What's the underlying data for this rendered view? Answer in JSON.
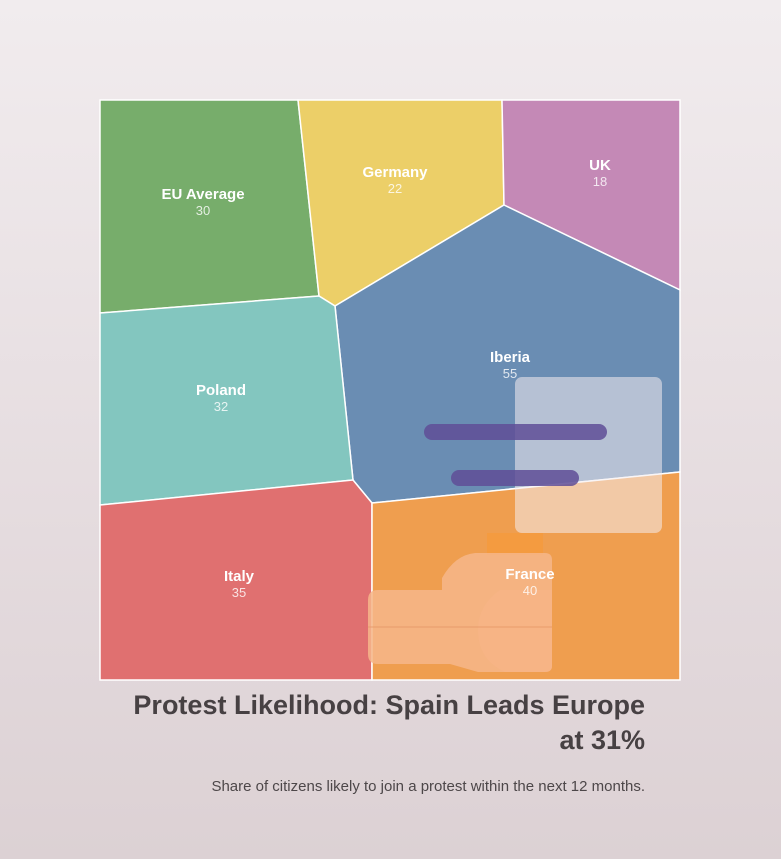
{
  "chart_data": {
    "type": "voronoi-treemap",
    "title": "Protest Likelihood: Spain Leads Europe at 31%",
    "subtitle": "Share of citizens likely to join a protest within the next 12 months.",
    "cells": [
      {
        "name": "EU Average",
        "value": 30,
        "color": "#77ad6b"
      },
      {
        "name": "Germany",
        "value": 22,
        "color": "#eccf68"
      },
      {
        "name": "UK",
        "value": 18,
        "color": "#c489b6"
      },
      {
        "name": "Iberia",
        "value": 55,
        "color": "#6a8db3"
      },
      {
        "name": "Poland",
        "value": 32,
        "color": "#83c6bf"
      },
      {
        "name": "Italy",
        "value": 35,
        "color": "#e07070"
      },
      {
        "name": "France",
        "value": 40,
        "color": "#ef9e4f"
      }
    ],
    "illustration": "raised-fist-with-banner-icon"
  }
}
